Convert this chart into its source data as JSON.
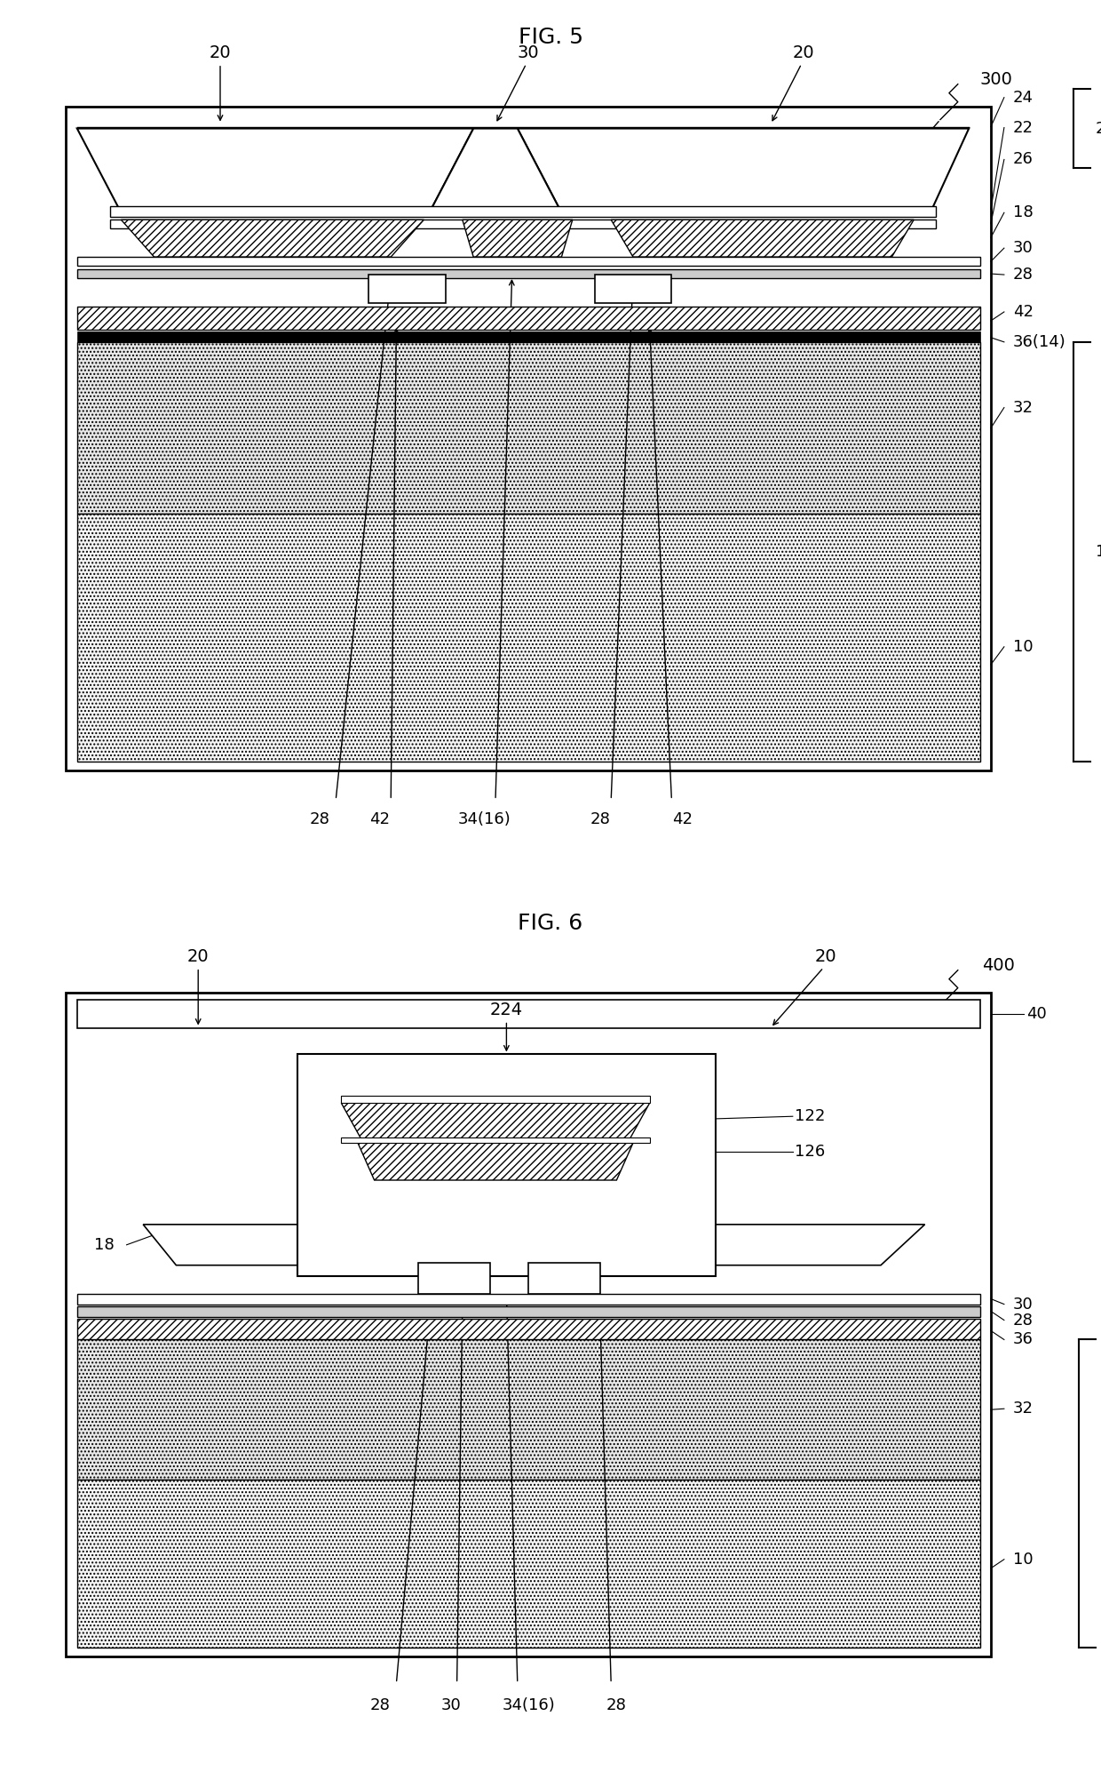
{
  "bg_color": "#ffffff",
  "fig1_title": "FIG. 5",
  "fig2_title": "FIG. 6"
}
